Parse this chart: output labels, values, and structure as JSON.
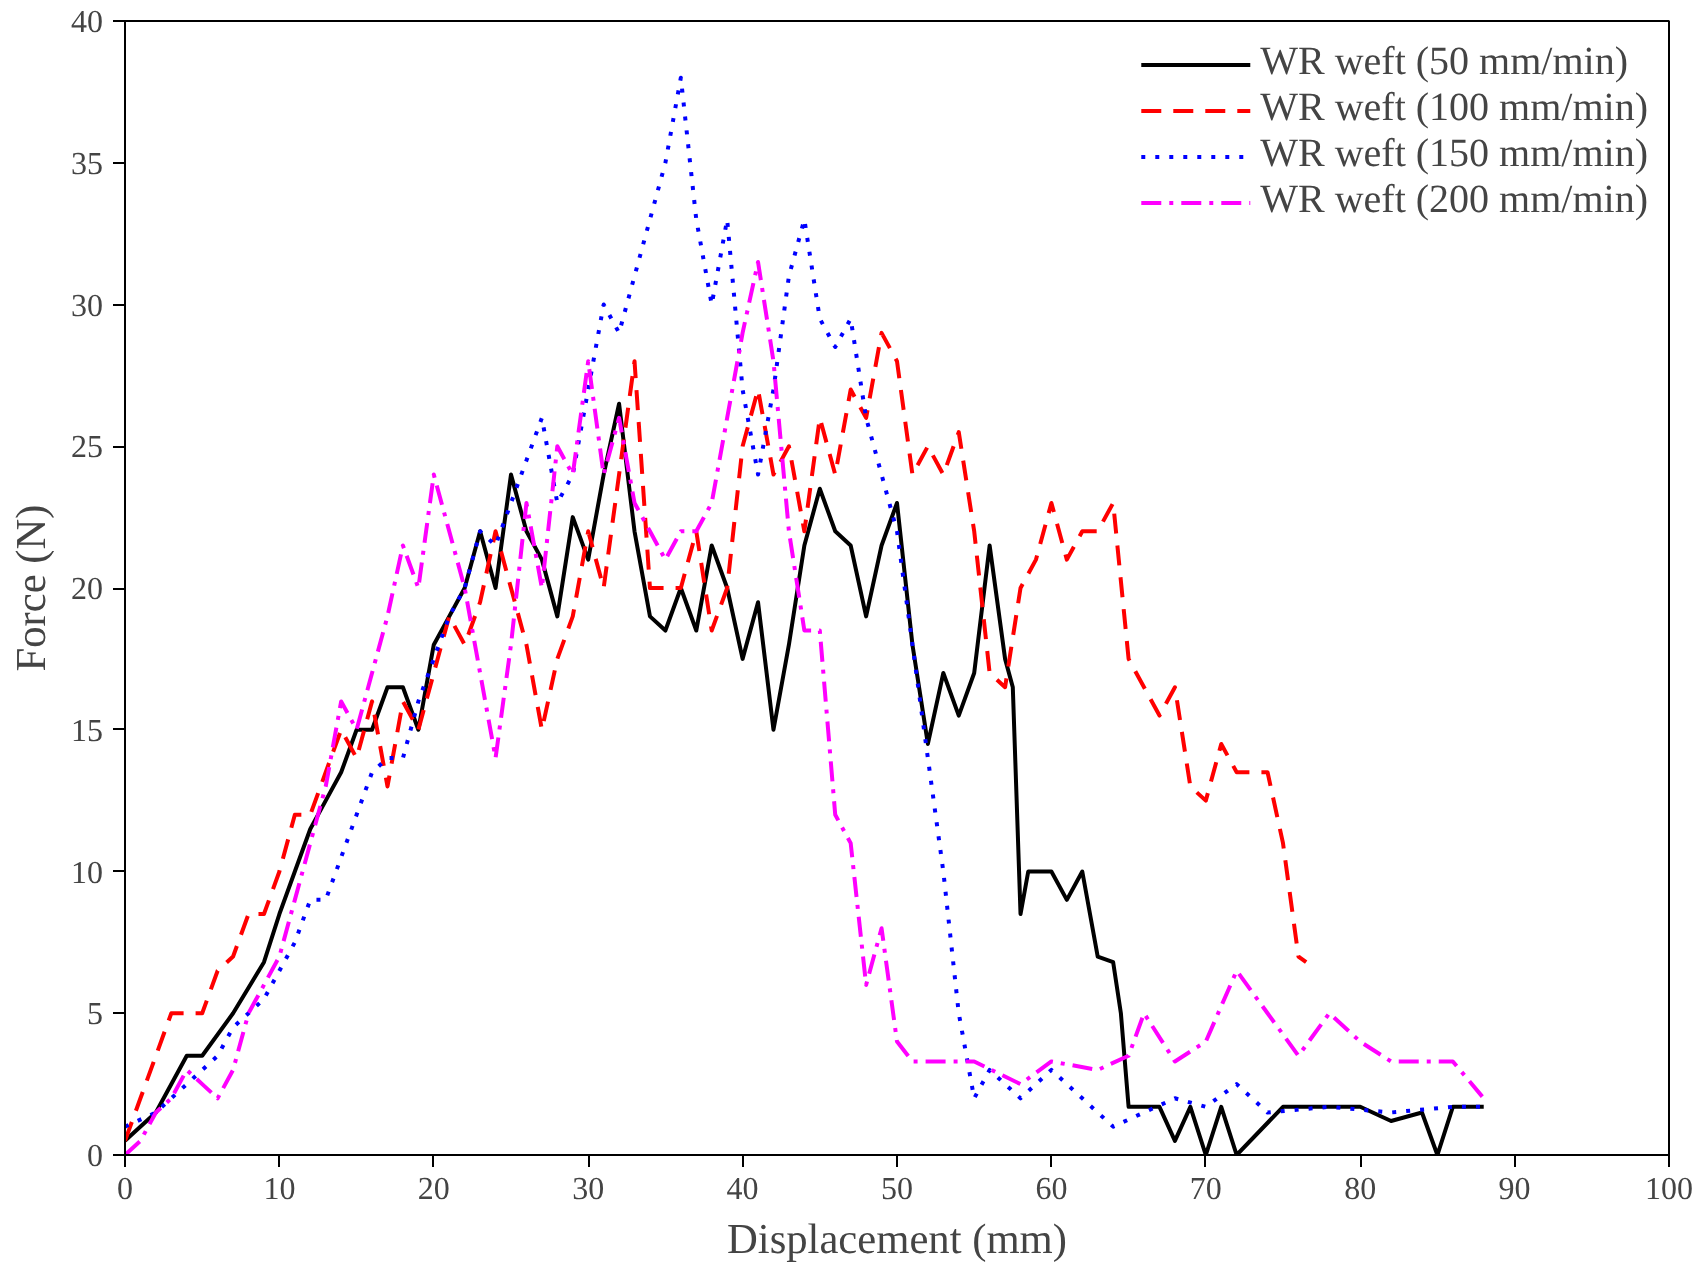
{
  "chart_data": {
    "type": "line",
    "xlabel": "Displacement (mm)",
    "ylabel": "Force (N)",
    "xlim": [
      0,
      100
    ],
    "ylim": [
      0,
      40
    ],
    "xticks": [
      0,
      10,
      20,
      30,
      40,
      50,
      60,
      70,
      80,
      90,
      100
    ],
    "yticks": [
      0,
      5,
      10,
      15,
      20,
      25,
      30,
      35,
      40
    ],
    "grid": false,
    "legend": "top right",
    "series": [
      {
        "name": "WR weft (50 mm/min)",
        "color": "#000000",
        "line_style": "solid",
        "x": [
          0,
          2,
          4,
          5,
          7,
          9,
          10,
          11,
          12,
          13,
          14,
          15,
          16,
          17,
          18,
          19,
          20,
          21,
          22,
          23,
          24,
          25,
          26,
          27,
          28,
          29,
          30,
          31,
          32,
          33,
          34,
          35,
          36,
          37,
          38,
          39,
          40,
          41,
          42,
          43,
          44,
          45,
          46,
          47,
          48,
          49,
          50,
          51,
          52,
          53,
          54,
          55,
          56,
          57,
          57.5,
          58,
          58.5,
          60,
          61,
          62,
          63,
          64,
          64.5,
          65,
          67,
          68,
          69,
          70,
          71,
          72,
          75,
          78,
          80,
          82,
          84,
          85,
          86,
          88
        ],
        "values": [
          0.5,
          1.5,
          3.5,
          3.5,
          5,
          6.8,
          8.5,
          10,
          11.5,
          12.5,
          13.5,
          15,
          15,
          16.5,
          16.5,
          15,
          18,
          19,
          20,
          22,
          20,
          24,
          22,
          21,
          19,
          22.5,
          21,
          24,
          26.5,
          22,
          19,
          18.5,
          20,
          18.5,
          21.5,
          20,
          17.5,
          19.5,
          15,
          18,
          21.5,
          23.5,
          22,
          21.5,
          19,
          21.5,
          23,
          18,
          14.5,
          17,
          15.5,
          17,
          21.5,
          17.5,
          16.5,
          8.5,
          10,
          10,
          9,
          10,
          7,
          6.8,
          5,
          1.7,
          1.7,
          0.5,
          1.7,
          0,
          1.7,
          0,
          1.7,
          1.7,
          1.7,
          1.2,
          1.5,
          0,
          1.7,
          1.7
        ]
      },
      {
        "name": "WR weft (100 mm/min)",
        "color": "#ff0000",
        "line_style": "dashed",
        "x": [
          0,
          1,
          2,
          3,
          5,
          6,
          7,
          8,
          9,
          10,
          11,
          12,
          13,
          14,
          15,
          16,
          17,
          18,
          19,
          20,
          21,
          22,
          23,
          24,
          25,
          26,
          27,
          28,
          29,
          30,
          31,
          32,
          33,
          34,
          35,
          36,
          37,
          38,
          39,
          40,
          41,
          42,
          43,
          44,
          45,
          46,
          47,
          48,
          49,
          50,
          51,
          52,
          53,
          54,
          55,
          56,
          57,
          58,
          59,
          60,
          61,
          62,
          63,
          64,
          65,
          66,
          67,
          68,
          69,
          70,
          71,
          72,
          74,
          75,
          76,
          76.5
        ],
        "values": [
          0.5,
          2,
          3.5,
          5,
          5,
          6.5,
          7,
          8.5,
          8.5,
          10,
          12,
          12,
          13.5,
          15,
          14,
          16,
          13,
          16,
          15,
          17,
          19,
          18,
          19.5,
          22,
          20,
          18,
          15,
          17.5,
          19,
          22,
          20,
          24,
          28,
          20,
          20,
          20,
          22,
          18.5,
          20,
          25,
          27,
          24,
          25,
          22,
          26,
          24,
          27,
          26,
          29,
          28,
          24,
          25,
          24,
          25.5,
          22,
          17,
          16.5,
          20,
          21,
          23,
          21,
          22,
          22,
          23,
          17.5,
          16.5,
          15.5,
          16.5,
          13,
          12.5,
          14.5,
          13.5,
          13.5,
          11,
          7,
          6.8
        ]
      },
      {
        "name": "WR weft (150 mm/min)",
        "color": "#0000ff",
        "line_style": "dotted",
        "x": [
          0,
          2,
          4,
          5,
          6,
          7,
          8,
          9,
          10,
          11,
          12,
          13,
          14,
          15,
          16,
          17,
          18,
          19,
          20,
          21,
          22,
          23,
          24,
          25,
          26,
          27,
          28,
          29,
          30,
          31,
          32,
          33,
          34,
          35,
          36,
          37,
          38,
          39,
          40,
          41,
          42,
          43,
          44,
          45,
          46,
          47,
          48,
          49,
          50,
          51,
          52,
          53,
          54,
          55,
          56,
          58,
          60,
          62,
          64,
          66,
          68,
          70,
          72,
          74,
          78,
          82,
          86,
          88
        ],
        "values": [
          1,
          1.5,
          2.5,
          3,
          3.5,
          4.5,
          5,
          5.5,
          6.5,
          7.5,
          9,
          9,
          10.5,
          12,
          13.5,
          14,
          14,
          16,
          17.5,
          19,
          20,
          22,
          21.5,
          23,
          24.5,
          26,
          23,
          24,
          27,
          30,
          29,
          31,
          33,
          35,
          38,
          33,
          30,
          33,
          27,
          24,
          27,
          31,
          33,
          29.5,
          28.5,
          29.5,
          26,
          24,
          22,
          18,
          14,
          10,
          5,
          2,
          3,
          2,
          3,
          2,
          1,
          1.5,
          2,
          1.7,
          2.5,
          1.5,
          1.7,
          1.5,
          1.7,
          1.7
        ]
      },
      {
        "name": "WR weft (200 mm/min)",
        "color": "#ff00ff",
        "line_style": "dashdot",
        "x": [
          0,
          1,
          2,
          3,
          4,
          5,
          6,
          7,
          8,
          9,
          10,
          11,
          12,
          13,
          14,
          15,
          16,
          17,
          18,
          19,
          20,
          21,
          22,
          23,
          24,
          25,
          26,
          27,
          28,
          29,
          30,
          31,
          32,
          33,
          34,
          35,
          36,
          37,
          38,
          39,
          40,
          41,
          42,
          43,
          44,
          45,
          46,
          47,
          48,
          49,
          50,
          51,
          55,
          58,
          60,
          63,
          65,
          66,
          68,
          70,
          72,
          74,
          76,
          78,
          80,
          82,
          86,
          88
        ],
        "values": [
          0,
          0.5,
          1.5,
          2,
          3,
          2.5,
          2,
          3,
          5,
          6,
          7,
          9,
          11,
          13,
          16,
          15,
          17,
          19,
          21.5,
          20,
          24,
          22,
          20,
          17,
          14,
          18,
          23,
          20,
          25,
          24,
          28,
          24,
          26,
          23,
          22,
          21,
          22,
          22,
          23,
          26,
          29,
          31.5,
          28,
          22,
          18.5,
          18.5,
          12,
          11,
          6,
          8,
          4,
          3.3,
          3.3,
          2.5,
          3.3,
          3,
          3.5,
          5,
          3.3,
          4,
          6.5,
          5,
          3.5,
          5,
          4,
          3.3,
          3.3,
          2
        ]
      }
    ]
  }
}
